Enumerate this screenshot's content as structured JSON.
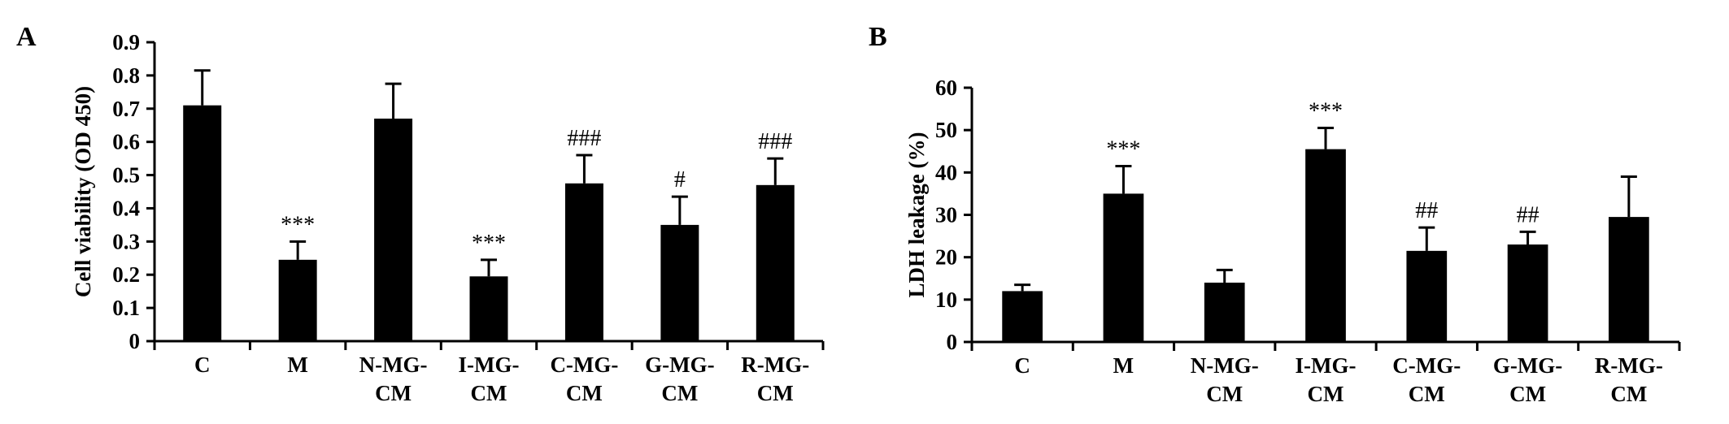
{
  "chart_data": [
    {
      "panel": "A",
      "type": "bar",
      "ylabel": "Cell viability (OD 450)",
      "xlabel": "",
      "ylim": [
        0,
        0.9
      ],
      "yticks": [
        "0",
        "0.1",
        "0.2",
        "0.3",
        "0.4",
        "0.5",
        "0.6",
        "0.7",
        "0.8",
        "0.9"
      ],
      "categories": [
        [
          "C"
        ],
        [
          "M"
        ],
        [
          "N-MG-",
          "CM"
        ],
        [
          "I-MG-",
          "CM"
        ],
        [
          "C-MG-",
          "CM"
        ],
        [
          "G-MG-",
          "CM"
        ],
        [
          "R-MG-",
          "CM"
        ]
      ],
      "values": [
        0.71,
        0.245,
        0.67,
        0.195,
        0.475,
        0.35,
        0.47
      ],
      "errors": [
        0.105,
        0.055,
        0.105,
        0.05,
        0.085,
        0.085,
        0.08
      ],
      "annotations": [
        "",
        "***",
        "",
        "***",
        "###",
        "#",
        "###"
      ],
      "grid": false,
      "bar_color": "#000000"
    },
    {
      "panel": "B",
      "type": "bar",
      "ylabel": "LDH leakage (%)",
      "xlabel": "",
      "ylim": [
        0,
        60
      ],
      "yticks": [
        "0",
        "10",
        "20",
        "30",
        "40",
        "50",
        "60"
      ],
      "categories": [
        [
          "C"
        ],
        [
          "M"
        ],
        [
          "N-MG-",
          "CM"
        ],
        [
          "I-MG-",
          "CM"
        ],
        [
          "C-MG-",
          "CM"
        ],
        [
          "G-MG-",
          "CM"
        ],
        [
          "R-MG-",
          "CM"
        ]
      ],
      "values": [
        12,
        35,
        14,
        45.5,
        21.5,
        23,
        29.5
      ],
      "errors": [
        1.5,
        6.5,
        3,
        5,
        5.5,
        3,
        9.5
      ],
      "annotations": [
        "",
        "***",
        "",
        "***",
        "##",
        "##",
        ""
      ],
      "grid": false,
      "bar_color": "#000000"
    }
  ]
}
